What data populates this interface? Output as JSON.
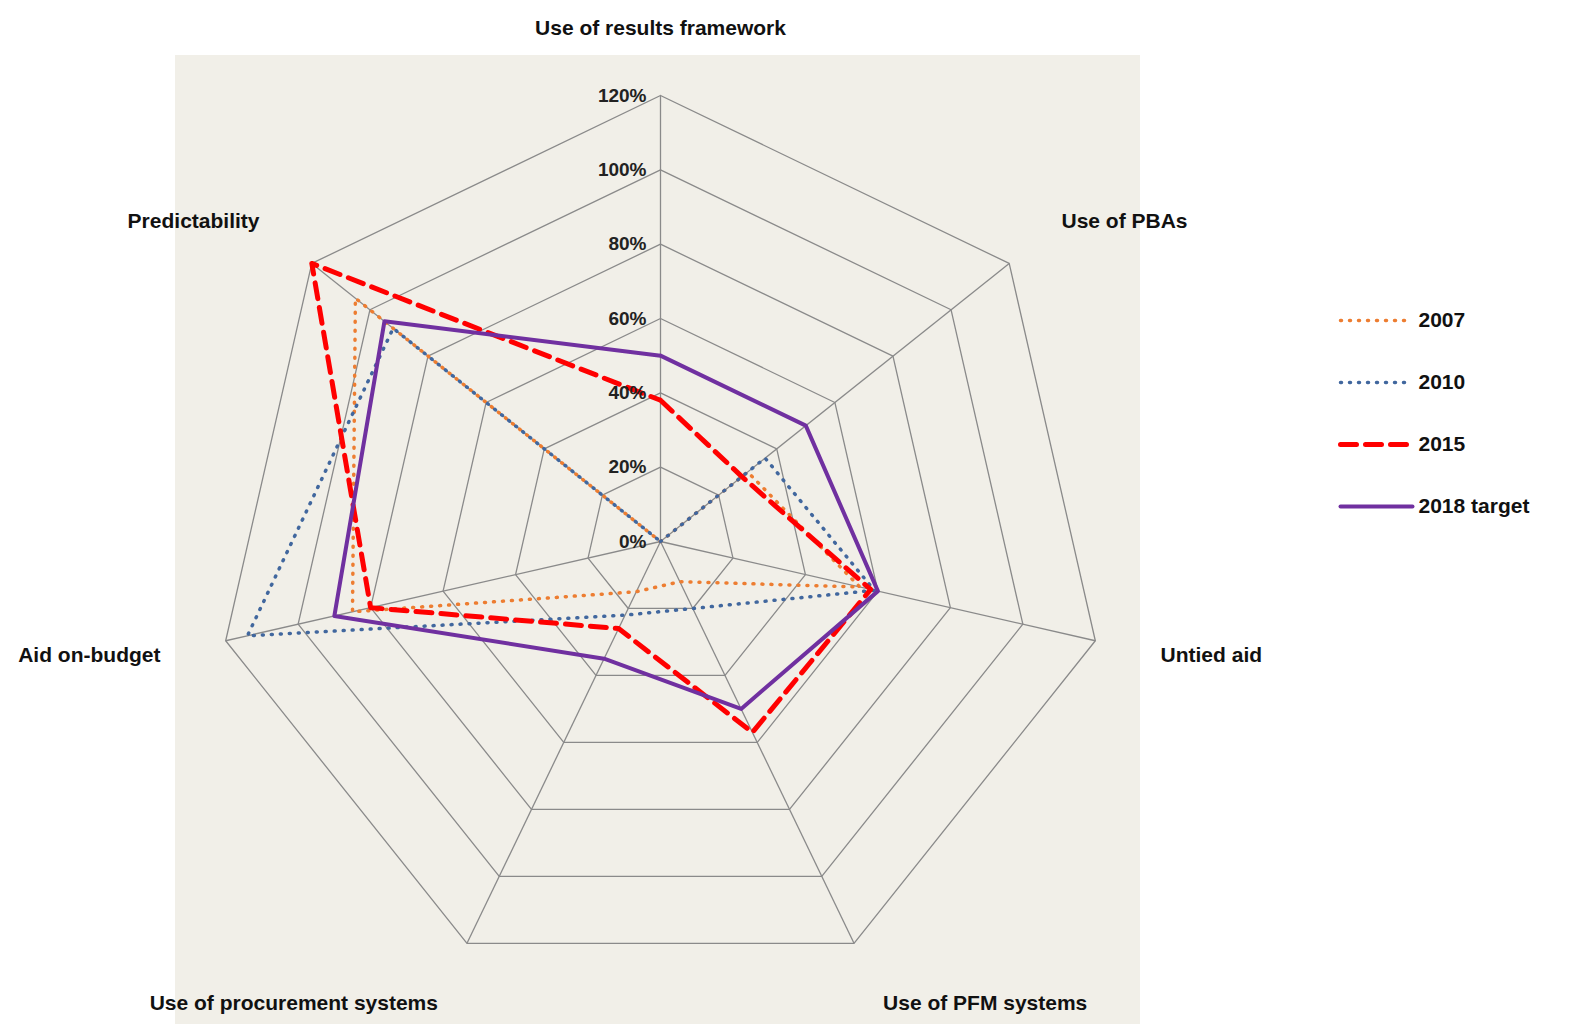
{
  "chart_data": {
    "type": "radar",
    "categories": [
      "Use of results framework",
      "Use of PBAs",
      "Untied aid",
      "Use of PFM systems",
      "Use of procurement systems",
      "Aid on-budget",
      "Predictability"
    ],
    "series": [
      {
        "name": "2007",
        "color": "#ed7d31",
        "line_style": "dotted",
        "values": [
          0,
          30,
          55,
          12,
          15,
          85,
          105
        ]
      },
      {
        "name": "2010",
        "color": "#41679e",
        "line_style": "dotted",
        "values": [
          0,
          36,
          59,
          20,
          22,
          114,
          92
        ]
      },
      {
        "name": "2015",
        "color": "#ff0000",
        "line_style": "dashed",
        "values": [
          38,
          28,
          58,
          57,
          26,
          80,
          120
        ]
      },
      {
        "name": "2018 target",
        "color": "#7030a0",
        "line_style": "solid",
        "values": [
          50,
          50,
          60,
          50,
          35,
          90,
          95
        ]
      }
    ],
    "ylim": [
      0,
      120
    ],
    "yticks": [
      {
        "value": 0,
        "label": "0%"
      },
      {
        "value": 20,
        "label": "20%"
      },
      {
        "value": 40,
        "label": "40%"
      },
      {
        "value": 60,
        "label": "60%"
      },
      {
        "value": 80,
        "label": "80%"
      },
      {
        "value": 100,
        "label": "100%"
      },
      {
        "value": 120,
        "label": "120%"
      }
    ],
    "grid": true,
    "legend": "right"
  }
}
